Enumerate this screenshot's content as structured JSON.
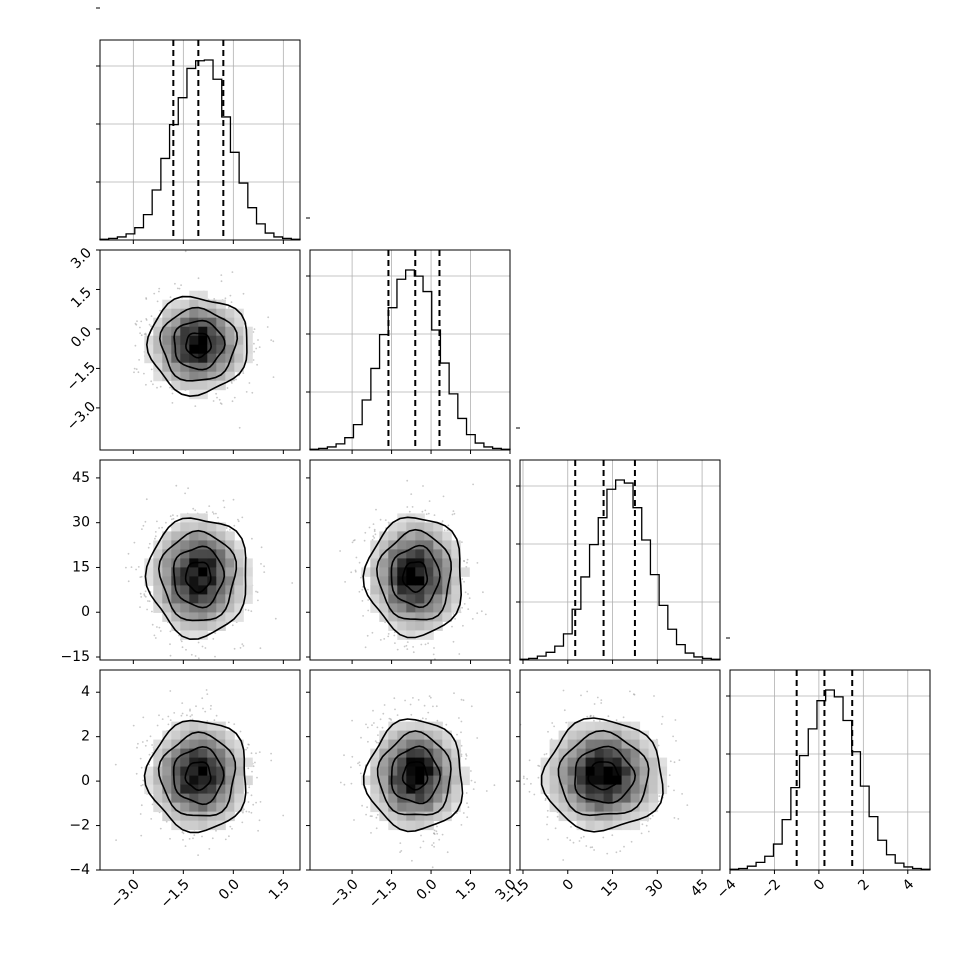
{
  "chart_data": {
    "type": "corner",
    "title": "",
    "parameters": [
      {
        "index": 0,
        "range": [
          -4.0,
          2.0
        ],
        "ticks": [
          -3.0,
          -1.5,
          0.0,
          1.5
        ],
        "tick_labels": [
          "−3.0",
          "−1.5",
          "0.0",
          "1.5"
        ],
        "quantiles": [
          -1.8,
          -1.05,
          -0.3
        ]
      },
      {
        "index": 1,
        "range": [
          -4.6,
          3.0
        ],
        "ticks": [
          -3.0,
          -1.5,
          0.0,
          1.5,
          3.0
        ],
        "tick_labels": [
          "−3.0",
          "−1.5",
          "0.0",
          "1.5",
          "3.0"
        ],
        "quantiles": [
          -1.62,
          -0.6,
          0.32
        ]
      },
      {
        "index": 2,
        "range": [
          -16.0,
          51.0
        ],
        "ticks": [
          -15,
          0,
          15,
          30,
          45
        ],
        "tick_labels": [
          "−15",
          "0",
          "15",
          "30",
          "45"
        ],
        "quantiles": [
          2.5,
          12.0,
          22.5
        ]
      },
      {
        "index": 3,
        "range": [
          -4.0,
          5.0
        ],
        "ticks": [
          -4,
          -2,
          0,
          2,
          4
        ],
        "tick_labels": [
          "−4",
          "−2",
          "0",
          "2",
          "4"
        ],
        "quantiles": [
          -1.0,
          0.25,
          1.5
        ]
      }
    ],
    "histograms": [
      {
        "param": 0,
        "counts": [
          1,
          2,
          4,
          8,
          16,
          33,
          65,
          106,
          150,
          185,
          223,
          233,
          234,
          209,
          160,
          114,
          74,
          42,
          21,
          9,
          4,
          2,
          1
        ]
      },
      {
        "param": 1,
        "counts": [
          1,
          2,
          4,
          8,
          16,
          33,
          65,
          106,
          150,
          185,
          222,
          234,
          226,
          206,
          156,
          113,
          73,
          41,
          20,
          9,
          4,
          2,
          1
        ]
      },
      {
        "param": 2,
        "counts": [
          1,
          2,
          5,
          10,
          18,
          34,
          66,
          108,
          150,
          185,
          222,
          234,
          230,
          198,
          156,
          111,
          71,
          40,
          20,
          9,
          4,
          2,
          1
        ]
      },
      {
        "param": 3,
        "counts": [
          1,
          2,
          5,
          10,
          18,
          34,
          66,
          108,
          150,
          185,
          222,
          236,
          227,
          196,
          155,
          110,
          70,
          39,
          20,
          9,
          4,
          2,
          1
        ]
      }
    ],
    "pairs": [
      {
        "x": 0,
        "y": 1,
        "center": [
          -1.05,
          -0.6
        ],
        "sigma": [
          0.75,
          0.92
        ],
        "sigma_levels": [
          0.5,
          1.0,
          1.5,
          2.0
        ]
      },
      {
        "x": 0,
        "y": 2,
        "center": [
          -1.05,
          12.0
        ],
        "sigma": [
          0.75,
          10.0
        ],
        "sigma_levels": [
          0.5,
          1.0,
          1.5,
          2.0
        ]
      },
      {
        "x": 1,
        "y": 2,
        "center": [
          -0.6,
          12.0
        ],
        "sigma": [
          0.92,
          10.0
        ],
        "sigma_levels": [
          0.5,
          1.0,
          1.5,
          2.0
        ]
      },
      {
        "x": 0,
        "y": 3,
        "center": [
          -1.05,
          0.25
        ],
        "sigma": [
          0.75,
          1.25
        ],
        "sigma_levels": [
          0.5,
          1.0,
          1.5,
          2.0
        ]
      },
      {
        "x": 1,
        "y": 3,
        "center": [
          -0.6,
          0.25
        ],
        "sigma": [
          0.92,
          1.25
        ],
        "sigma_levels": [
          0.5,
          1.0,
          1.5,
          2.0
        ]
      },
      {
        "x": 2,
        "y": 3,
        "center": [
          12.0,
          0.25
        ],
        "sigma": [
          10.0,
          1.25
        ],
        "sigma_levels": [
          0.5,
          1.0,
          1.5,
          2.0
        ]
      }
    ],
    "grid": true,
    "legend": "none",
    "colors": {
      "hist": "#000000",
      "contour": "#000000",
      "points": "#9a9a9a",
      "grid": "#b0b0b0"
    }
  }
}
